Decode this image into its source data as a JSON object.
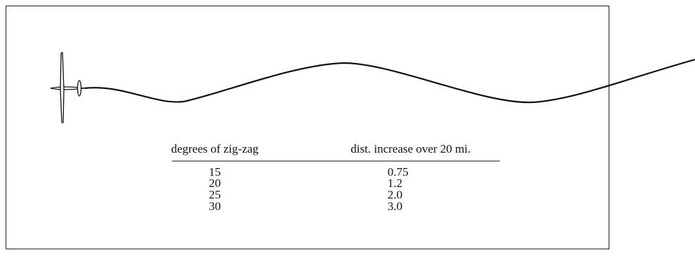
{
  "table": {
    "header": [
      "degrees of zig-zag",
      "dist. increase over 20 mi."
    ],
    "rows": [
      [
        "15",
        "0.75"
      ],
      [
        "20",
        "1.2"
      ],
      [
        "25",
        "2.0"
      ],
      [
        "30",
        "3.0"
      ]
    ]
  }
}
